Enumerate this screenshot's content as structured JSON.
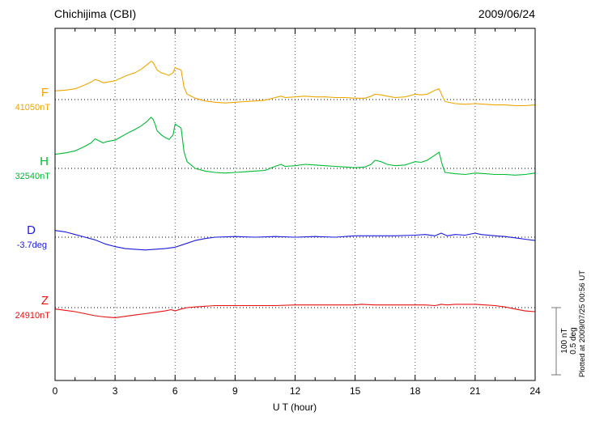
{
  "header": {
    "station": "Chichijima (CBI)",
    "date": "2009/06/24"
  },
  "scalebar": {
    "nt_label": "100 nT",
    "deg_label": "0.5 deg"
  },
  "note": "Plotted at 2009/07/25 00:56 UT",
  "chart_data": {
    "type": "line",
    "title": "Chichijima (CBI) geomagnetic variations 2009/06/24",
    "xlabel": "U T (hour)",
    "x_range": [
      0,
      24
    ],
    "x_tick_interval": 3,
    "x_tick_labels": [
      "0",
      "3",
      "6",
      "9",
      "12",
      "15",
      "18",
      "21",
      "24"
    ],
    "grid": "dotted vertical at 3h; dotted horizontal baseline per trace",
    "scale_per_division": {
      "nT": 100,
      "deg": 0.5
    },
    "series": [
      {
        "name": "F",
        "unit": "nT",
        "baseline": 41050,
        "baseline_label": "41050nT",
        "color": "#f0a500",
        "x": [
          0,
          0.5,
          1,
          1.5,
          1.8,
          2,
          2.2,
          2.4,
          2.6,
          3,
          3.3,
          3.6,
          4,
          4.3,
          4.6,
          4.8,
          4.9,
          5.0,
          5.1,
          5.3,
          5.5,
          5.7,
          5.9,
          6.0,
          6.1,
          6.3,
          6.45,
          6.6,
          7,
          7.5,
          8,
          8.5,
          9,
          9.5,
          10,
          10.5,
          11,
          11.3,
          11.5,
          12,
          12.5,
          13,
          13.5,
          14,
          14.5,
          15,
          15.5,
          15.8,
          16,
          16.3,
          16.6,
          17,
          17.5,
          18,
          18.3,
          18.6,
          19,
          19.2,
          19.35,
          19.5,
          20,
          20.5,
          21,
          21.5,
          22,
          22.5,
          23,
          23.5,
          24
        ],
        "offsets": [
          13,
          14,
          16,
          22,
          26,
          30,
          28,
          25,
          26,
          28,
          32,
          36,
          40,
          45,
          52,
          57,
          55,
          50,
          44,
          40,
          38,
          36,
          40,
          48,
          46,
          44,
          18,
          8,
          2,
          -2,
          -4,
          -5,
          -4,
          -3,
          -2,
          -1,
          3,
          5,
          3,
          4,
          5,
          4,
          4,
          3,
          3,
          2,
          2,
          5,
          8,
          7,
          5,
          3,
          4,
          8,
          7,
          8,
          14,
          16,
          6,
          -3,
          -6,
          -7,
          -6,
          -7,
          -8,
          -8,
          -9,
          -9,
          -8
        ]
      },
      {
        "name": "H",
        "unit": "nT",
        "baseline": 32540,
        "baseline_label": "32540nT",
        "color": "#00bb33",
        "x": [
          0,
          0.5,
          1,
          1.5,
          1.8,
          2,
          2.2,
          2.4,
          2.6,
          3,
          3.3,
          3.6,
          4,
          4.3,
          4.6,
          4.8,
          4.9,
          5.0,
          5.1,
          5.3,
          5.5,
          5.7,
          5.9,
          6.0,
          6.1,
          6.3,
          6.45,
          6.6,
          7,
          7.5,
          8,
          8.5,
          9,
          9.5,
          10,
          10.5,
          11,
          11.3,
          11.5,
          12,
          12.5,
          13,
          13.5,
          14,
          14.5,
          15,
          15.5,
          15.8,
          16,
          16.3,
          16.6,
          17,
          17.5,
          18,
          18.3,
          18.6,
          19,
          19.2,
          19.35,
          19.5,
          20,
          20.5,
          21,
          21.5,
          22,
          22.5,
          23,
          23.5,
          24
        ],
        "offsets": [
          21,
          23,
          26,
          33,
          38,
          44,
          41,
          38,
          40,
          42,
          47,
          52,
          58,
          63,
          70,
          76,
          73,
          66,
          56,
          50,
          46,
          43,
          50,
          66,
          64,
          60,
          24,
          10,
          0,
          -4,
          -6,
          -7,
          -6,
          -5,
          -4,
          -3,
          3,
          6,
          3,
          4,
          6,
          5,
          4,
          3,
          2,
          1,
          2,
          6,
          12,
          10,
          6,
          4,
          5,
          10,
          9,
          12,
          20,
          24,
          6,
          -6,
          -8,
          -9,
          -7,
          -8,
          -9,
          -9,
          -10,
          -9,
          -7
        ]
      },
      {
        "name": "D",
        "unit": "deg",
        "baseline": -3.7,
        "baseline_label": "-3.7deg",
        "color": "#1a1ae0",
        "x": [
          0,
          0.5,
          1,
          1.5,
          2,
          2.5,
          3,
          3.5,
          4,
          4.5,
          5,
          5.5,
          6,
          6.5,
          7,
          7.5,
          8,
          9,
          10,
          11,
          12,
          13,
          14,
          15,
          16,
          17,
          18,
          18.5,
          19,
          19.3,
          19.6,
          20,
          20.5,
          21,
          21.3,
          22,
          22.5,
          23,
          23.5,
          24
        ],
        "offsets": [
          0.05,
          0.04,
          0.02,
          0.0,
          -0.02,
          -0.05,
          -0.07,
          -0.085,
          -0.09,
          -0.095,
          -0.09,
          -0.085,
          -0.075,
          -0.05,
          -0.025,
          -0.01,
          0.0,
          0.005,
          0.0,
          0.005,
          0.0,
          0.005,
          0.0,
          0.01,
          0.01,
          0.01,
          0.015,
          0.02,
          0.01,
          0.03,
          0.01,
          0.02,
          0.015,
          0.03,
          0.02,
          0.01,
          0.005,
          -0.005,
          -0.015,
          -0.025
        ]
      },
      {
        "name": "Z",
        "unit": "nT",
        "baseline": 24910,
        "baseline_label": "24910nT",
        "color": "#e81010",
        "x": [
          0,
          0.5,
          1,
          1.5,
          2,
          2.5,
          3,
          3.5,
          4,
          4.5,
          5,
          5.5,
          5.8,
          6,
          6.3,
          6.6,
          7,
          7.5,
          8,
          9,
          10,
          11,
          12,
          13,
          14,
          15,
          15.3,
          16,
          17,
          18,
          18.5,
          19,
          19.3,
          19.6,
          20,
          20.5,
          21,
          21.5,
          22,
          22.5,
          23,
          23.5,
          24
        ],
        "offsets": [
          -2,
          -4,
          -6,
          -9,
          -12,
          -14,
          -15,
          -13,
          -11,
          -9,
          -7,
          -5,
          -3,
          -5,
          -2,
          0,
          1,
          2,
          3,
          3,
          3,
          3,
          4,
          4,
          4,
          4,
          5,
          4,
          4,
          4,
          4,
          3,
          5,
          4,
          5,
          5,
          5,
          4,
          3,
          1,
          -2,
          -5,
          -6
        ]
      }
    ]
  }
}
